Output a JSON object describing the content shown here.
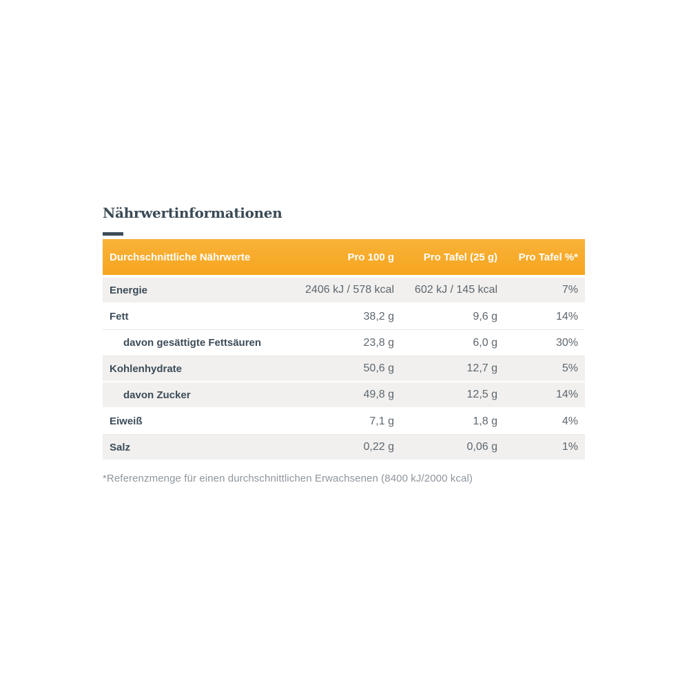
{
  "page": {
    "title": "Nährwertinformationen",
    "footnote": "*Referenzmenge für einen durchschnittlichen Erwachsenen (8400 kJ/2000 kcal)"
  },
  "colors": {
    "accent_orange": "#f7a728",
    "heading_dark": "#3b4a55",
    "row_shaded_bg": "#f1f0ee",
    "label_text": "#3d4c58",
    "value_text": "#5d666e",
    "header_text": "#ffffff",
    "footnote_text": "#8e959c"
  },
  "table": {
    "columns": [
      "Durchschnittliche Nährwerte",
      "Pro 100 g",
      "Pro Tafel (25 g)",
      "Pro Tafel %*"
    ],
    "rows": [
      {
        "label": "Energie",
        "per100g": "2406 kJ / 578 kcal",
        "perTafel": "602 kJ / 145 kcal",
        "percent": "7%"
      },
      {
        "label": "Fett",
        "per100g": "38,2 g",
        "perTafel": "9,6 g",
        "percent": "14%"
      },
      {
        "label": "davon gesättigte Fettsäuren",
        "per100g": "23,8 g",
        "perTafel": "6,0 g",
        "percent": "30%"
      },
      {
        "label": "Kohlenhydrate",
        "per100g": "50,6 g",
        "perTafel": "12,7 g",
        "percent": "5%"
      },
      {
        "label": "davon Zucker",
        "per100g": "49,8 g",
        "perTafel": "12,5 g",
        "percent": "14%"
      },
      {
        "label": "Eiweiß",
        "per100g": "7,1 g",
        "perTafel": "1,8 g",
        "percent": "4%"
      },
      {
        "label": "Salz",
        "per100g": "0,22 g",
        "perTafel": "0,06 g",
        "percent": "1%"
      }
    ]
  }
}
